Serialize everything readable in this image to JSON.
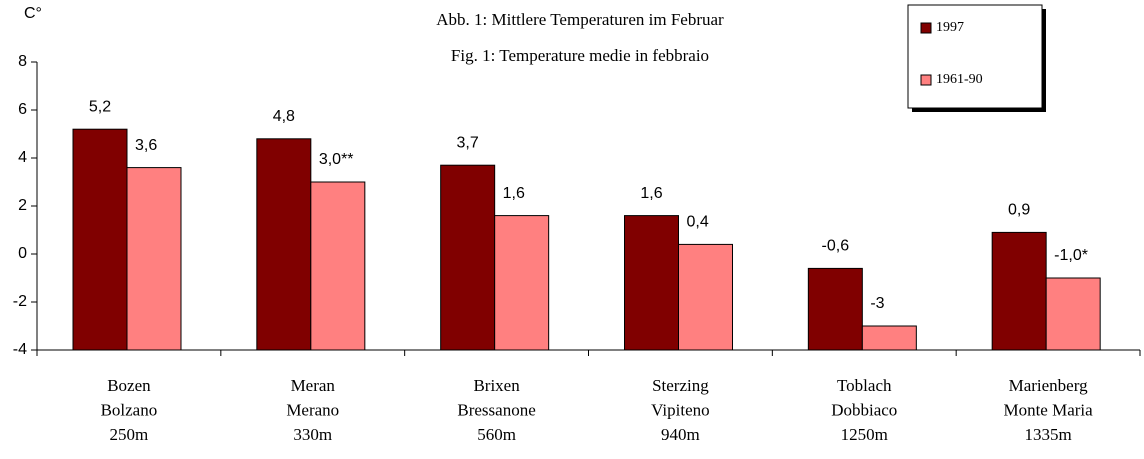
{
  "chart_data": {
    "type": "bar",
    "title": [
      "Abb. 1: Mittlere Temperaturen im Februar",
      "Fig. 1: Temperature medie in febbraio"
    ],
    "y_label": "C°",
    "categories": [
      [
        "Bozen",
        "Bolzano",
        "250m"
      ],
      [
        "Meran",
        "Merano",
        "330m"
      ],
      [
        "Brixen",
        "Bressanone",
        "560m"
      ],
      [
        "Sterzing",
        "Vipiteno",
        "940m"
      ],
      [
        "Toblach",
        "Dobbiaco",
        "1250m"
      ],
      [
        "Marienberg",
        "Monte Maria",
        "1335m"
      ]
    ],
    "series": [
      {
        "name": "1997",
        "color": "#800000",
        "values": [
          5.2,
          4.8,
          3.7,
          1.6,
          -0.6,
          0.9
        ],
        "value_labels": [
          "5,2",
          "4,8",
          "3,7",
          "1,6",
          "-0,6",
          "0,9"
        ]
      },
      {
        "name": "1961-90",
        "color": "#ff8080",
        "values": [
          3.6,
          3.0,
          1.6,
          0.4,
          -3,
          -1.0
        ],
        "value_labels": [
          "3,6",
          "3,0**",
          "1,6",
          "0,4",
          "-3",
          "-1,0*"
        ]
      }
    ],
    "ylim": [
      -4,
      8
    ],
    "yticks": [
      -4,
      -2,
      0,
      2,
      4,
      6,
      8
    ],
    "legend": "top-right"
  }
}
